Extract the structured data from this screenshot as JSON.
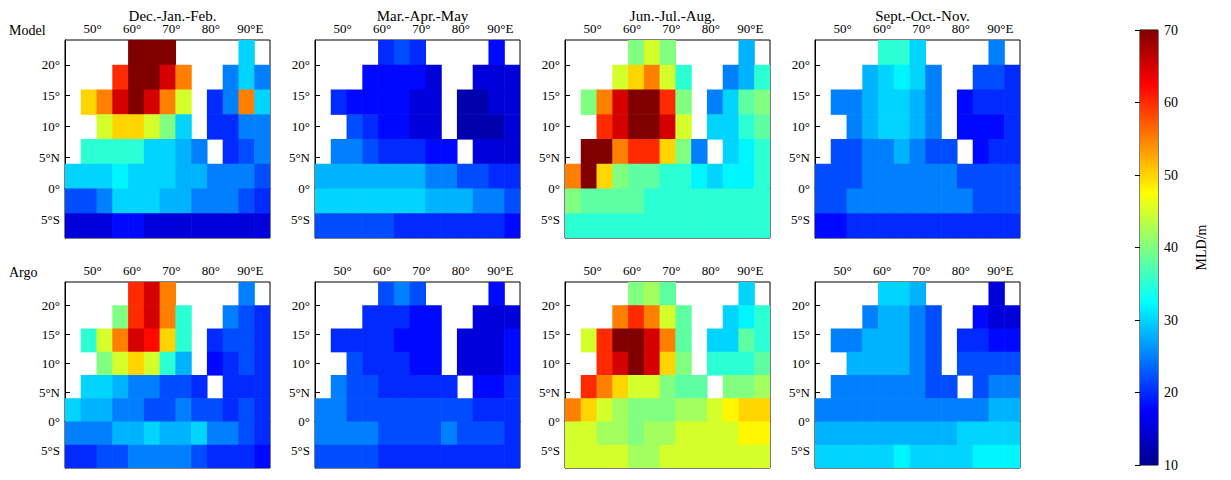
{
  "chart_data": {
    "type": "heatmap",
    "columns": [
      "Dec.-Jan.-Feb.",
      "Mar.-Apr.-May",
      "Jun.-Jul.-Aug.",
      "Sept.-Oct.-Nov."
    ],
    "rows": [
      "Model",
      "Argo"
    ],
    "x": [
      45,
      49,
      53,
      57,
      61,
      65,
      69,
      73,
      77,
      81,
      85,
      89,
      93
    ],
    "y": [
      22,
      18,
      14,
      10,
      6,
      2,
      -2,
      -6
    ],
    "xlim": [
      43,
      95
    ],
    "xticks": [
      {
        "value": 50,
        "label": "50°"
      },
      {
        "value": 60,
        "label": "60°"
      },
      {
        "value": 70,
        "label": "70°"
      },
      {
        "value": 80,
        "label": "80°"
      },
      {
        "value": 90,
        "label": "90°E"
      }
    ],
    "ylim": [
      -8,
      24
    ],
    "yticks": [
      {
        "value": 20,
        "label": "20°"
      },
      {
        "value": 15,
        "label": "15°"
      },
      {
        "value": 10,
        "label": "10°"
      },
      {
        "value": 5,
        "label": "5°N"
      },
      {
        "value": 0,
        "label": "0°"
      },
      {
        "value": -5,
        "label": "5°S"
      }
    ],
    "colorbar": {
      "label": "MLD/m",
      "range": [
        10,
        70
      ],
      "ticks": [
        10,
        20,
        30,
        40,
        50,
        60,
        70
      ]
    },
    "panels": [
      [
        [
          [
            null,
            null,
            null,
            null,
            70,
            70,
            70,
            null,
            null,
            null,
            null,
            30,
            null
          ],
          [
            null,
            null,
            null,
            60,
            70,
            70,
            65,
            55,
            null,
            null,
            25,
            30,
            25
          ],
          [
            null,
            50,
            55,
            65,
            70,
            65,
            55,
            45,
            null,
            20,
            25,
            55,
            30
          ],
          [
            null,
            null,
            45,
            50,
            50,
            45,
            40,
            30,
            null,
            20,
            20,
            25,
            25
          ],
          [
            null,
            35,
            35,
            35,
            35,
            30,
            30,
            28,
            25,
            null,
            20,
            22,
            25
          ],
          [
            30,
            30,
            30,
            32,
            30,
            30,
            30,
            28,
            28,
            25,
            25,
            25,
            22
          ],
          [
            22,
            22,
            25,
            30,
            30,
            30,
            28,
            28,
            25,
            25,
            25,
            22,
            20
          ],
          [
            15,
            15,
            15,
            18,
            18,
            15,
            15,
            15,
            15,
            15,
            15,
            15,
            15
          ]
        ],
        [
          [
            null,
            null,
            null,
            null,
            20,
            22,
            20,
            null,
            null,
            null,
            null,
            18,
            null
          ],
          [
            null,
            null,
            null,
            18,
            18,
            18,
            18,
            15,
            null,
            null,
            15,
            15,
            15
          ],
          [
            null,
            20,
            18,
            18,
            18,
            18,
            15,
            15,
            null,
            12,
            12,
            15,
            15
          ],
          [
            null,
            null,
            22,
            20,
            18,
            18,
            15,
            15,
            null,
            12,
            12,
            12,
            15
          ],
          [
            null,
            25,
            25,
            22,
            20,
            20,
            20,
            18,
            18,
            null,
            15,
            15,
            15
          ],
          [
            28,
            28,
            28,
            28,
            28,
            28,
            28,
            25,
            25,
            22,
            22,
            20,
            20
          ],
          [
            30,
            30,
            30,
            30,
            30,
            30,
            30,
            28,
            28,
            28,
            25,
            25,
            22
          ],
          [
            22,
            22,
            22,
            22,
            22,
            20,
            20,
            20,
            20,
            20,
            20,
            20,
            18
          ]
        ],
        [
          [
            null,
            null,
            null,
            null,
            40,
            45,
            40,
            null,
            null,
            null,
            null,
            28,
            null
          ],
          [
            null,
            null,
            null,
            45,
            50,
            55,
            45,
            35,
            null,
            null,
            25,
            28,
            35
          ],
          [
            null,
            40,
            55,
            65,
            70,
            70,
            60,
            40,
            null,
            25,
            30,
            38,
            40
          ],
          [
            null,
            null,
            60,
            65,
            70,
            70,
            65,
            45,
            null,
            30,
            30,
            35,
            38
          ],
          [
            null,
            70,
            70,
            55,
            60,
            60,
            50,
            40,
            25,
            null,
            30,
            32,
            35
          ],
          [
            55,
            70,
            50,
            40,
            38,
            38,
            35,
            35,
            32,
            30,
            32,
            32,
            35
          ],
          [
            40,
            38,
            38,
            38,
            38,
            35,
            35,
            35,
            35,
            35,
            35,
            35,
            35
          ],
          [
            35,
            35,
            35,
            35,
            35,
            35,
            35,
            35,
            35,
            35,
            35,
            35,
            35
          ]
        ],
        [
          [
            null,
            null,
            null,
            null,
            35,
            35,
            30,
            null,
            null,
            null,
            null,
            25,
            null
          ],
          [
            null,
            null,
            null,
            28,
            30,
            32,
            30,
            25,
            null,
            null,
            22,
            22,
            20
          ],
          [
            null,
            25,
            25,
            28,
            30,
            30,
            28,
            25,
            null,
            18,
            20,
            20,
            20
          ],
          [
            null,
            null,
            25,
            28,
            30,
            30,
            28,
            25,
            null,
            18,
            18,
            18,
            20
          ],
          [
            null,
            22,
            22,
            25,
            25,
            28,
            25,
            22,
            22,
            null,
            18,
            20,
            20
          ],
          [
            22,
            22,
            22,
            25,
            25,
            25,
            25,
            25,
            25,
            22,
            22,
            22,
            22
          ],
          [
            22,
            22,
            25,
            25,
            25,
            25,
            25,
            25,
            25,
            25,
            22,
            22,
            22
          ],
          [
            18,
            18,
            20,
            20,
            20,
            20,
            20,
            20,
            20,
            20,
            20,
            20,
            20
          ]
        ]
      ],
      [
        [
          [
            null,
            null,
            null,
            null,
            60,
            65,
            55,
            null,
            null,
            null,
            null,
            25,
            null
          ],
          [
            null,
            null,
            null,
            40,
            60,
            65,
            55,
            35,
            null,
            null,
            25,
            22,
            20
          ],
          [
            null,
            35,
            45,
            55,
            65,
            62,
            50,
            35,
            null,
            20,
            22,
            22,
            20
          ],
          [
            null,
            null,
            40,
            45,
            50,
            45,
            35,
            28,
            null,
            18,
            20,
            22,
            20
          ],
          [
            null,
            30,
            30,
            28,
            25,
            25,
            22,
            22,
            20,
            null,
            20,
            20,
            20
          ],
          [
            30,
            28,
            28,
            25,
            25,
            22,
            22,
            25,
            22,
            22,
            20,
            22,
            20
          ],
          [
            25,
            25,
            25,
            28,
            28,
            30,
            28,
            28,
            30,
            25,
            25,
            22,
            20
          ],
          [
            20,
            20,
            22,
            22,
            25,
            25,
            25,
            25,
            22,
            20,
            20,
            20,
            18
          ]
        ],
        [
          [
            null,
            null,
            null,
            null,
            22,
            25,
            22,
            null,
            null,
            null,
            null,
            18,
            null
          ],
          [
            null,
            null,
            null,
            20,
            20,
            20,
            18,
            18,
            null,
            null,
            15,
            15,
            15
          ],
          [
            null,
            20,
            20,
            20,
            20,
            18,
            18,
            18,
            null,
            15,
            15,
            15,
            18
          ],
          [
            null,
            null,
            22,
            20,
            20,
            20,
            18,
            18,
            null,
            15,
            15,
            15,
            18
          ],
          [
            null,
            25,
            22,
            22,
            20,
            20,
            20,
            20,
            20,
            null,
            18,
            18,
            20
          ],
          [
            25,
            25,
            22,
            22,
            22,
            22,
            22,
            22,
            22,
            22,
            20,
            20,
            20
          ],
          [
            25,
            25,
            25,
            25,
            22,
            22,
            22,
            22,
            25,
            22,
            22,
            22,
            20
          ],
          [
            22,
            22,
            22,
            22,
            20,
            20,
            20,
            20,
            20,
            20,
            20,
            20,
            20
          ]
        ],
        [
          [
            null,
            null,
            null,
            null,
            40,
            42,
            38,
            null,
            null,
            null,
            null,
            30,
            null
          ],
          [
            null,
            null,
            null,
            55,
            60,
            55,
            45,
            38,
            null,
            null,
            30,
            32,
            35
          ],
          [
            null,
            45,
            60,
            70,
            70,
            65,
            55,
            38,
            null,
            30,
            30,
            38,
            35
          ],
          [
            null,
            null,
            60,
            65,
            70,
            65,
            50,
            40,
            null,
            35,
            35,
            35,
            38
          ],
          [
            null,
            60,
            55,
            50,
            45,
            45,
            40,
            38,
            38,
            null,
            40,
            40,
            42
          ],
          [
            55,
            50,
            45,
            42,
            40,
            40,
            40,
            42,
            42,
            45,
            48,
            50,
            50
          ],
          [
            45,
            45,
            42,
            42,
            40,
            42,
            42,
            45,
            45,
            45,
            45,
            48,
            48
          ],
          [
            45,
            45,
            45,
            45,
            42,
            42,
            45,
            45,
            45,
            45,
            45,
            45,
            45
          ]
        ],
        [
          [
            null,
            null,
            null,
            null,
            30,
            30,
            28,
            null,
            null,
            null,
            null,
            15,
            null
          ],
          [
            null,
            null,
            null,
            25,
            28,
            28,
            25,
            22,
            null,
            null,
            18,
            15,
            15
          ],
          [
            null,
            25,
            25,
            28,
            28,
            28,
            25,
            22,
            null,
            20,
            20,
            18,
            18
          ],
          [
            null,
            null,
            28,
            28,
            28,
            28,
            25,
            22,
            null,
            22,
            22,
            22,
            22
          ],
          [
            null,
            25,
            25,
            25,
            25,
            25,
            25,
            22,
            22,
            null,
            22,
            25,
            25
          ],
          [
            25,
            25,
            25,
            25,
            25,
            25,
            25,
            25,
            25,
            25,
            25,
            28,
            28
          ],
          [
            28,
            28,
            28,
            28,
            28,
            28,
            28,
            28,
            28,
            30,
            30,
            30,
            30
          ],
          [
            30,
            30,
            30,
            30,
            30,
            32,
            30,
            30,
            30,
            30,
            32,
            32,
            32
          ]
        ]
      ]
    ]
  }
}
